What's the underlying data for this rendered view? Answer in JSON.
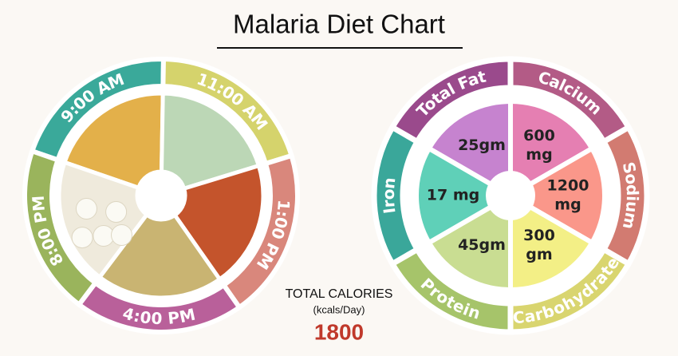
{
  "title": "Malaria Diet Chart",
  "meal_times": [
    "9:00 AM",
    "11:00 AM",
    "1:00 PM",
    "4:00 PM",
    "8:00 PM"
  ],
  "total_calories": {
    "label": "TOTAL CALORIES",
    "unit": "(kcals/Day)",
    "value": "1800"
  },
  "nutrients": [
    {
      "name": "Total Fat",
      "amount_lines": [
        "25gm"
      ]
    },
    {
      "name": "Calcium",
      "amount_lines": [
        "600",
        "mg"
      ]
    },
    {
      "name": "Sodium",
      "amount_lines": [
        "1200",
        "mg"
      ]
    },
    {
      "name": "Carbohydrate",
      "amount_lines": [
        "300",
        "gm"
      ]
    },
    {
      "name": "Protein",
      "amount_lines": [
        "45gm"
      ]
    },
    {
      "name": "Iron",
      "amount_lines": [
        "17 mg"
      ]
    }
  ]
}
